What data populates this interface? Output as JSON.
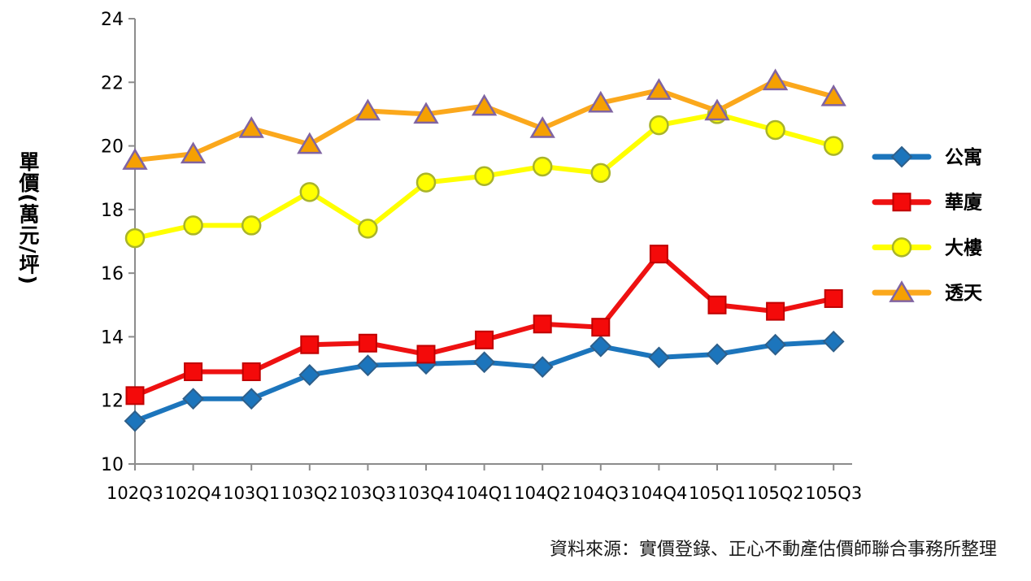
{
  "page": {
    "background": "#ffffff"
  },
  "chart_data": {
    "type": "line",
    "title": "",
    "ylabel": "單價(萬元/坪)",
    "xlabel": "",
    "source_note": "資料來源：實價登錄、正心不動產估價師聯合事務所整理",
    "grid": false,
    "legend_position": "right",
    "ylim": [
      10,
      24
    ],
    "y_ticks": [
      10,
      12,
      14,
      16,
      18,
      20,
      22,
      24
    ],
    "axis_color": "#8C8C8C",
    "text_color": "#000000",
    "categories": [
      "102Q3",
      "102Q4",
      "103Q1",
      "103Q2",
      "103Q3",
      "103Q4",
      "104Q1",
      "104Q2",
      "104Q3",
      "104Q4",
      "105Q1",
      "105Q2",
      "105Q3"
    ],
    "series": [
      {
        "name": "公寓",
        "marker": "diamond",
        "line_color": "#1C75BC",
        "marker_fill": "#1C75BC",
        "marker_stroke": "#2E5F8A",
        "values": [
          11.35,
          12.05,
          12.05,
          12.8,
          13.1,
          13.15,
          13.2,
          13.05,
          13.7,
          13.35,
          13.45,
          13.75,
          13.85
        ]
      },
      {
        "name": "華廈",
        "marker": "square",
        "line_color": "#EE1111",
        "marker_fill": "#F40A0A",
        "marker_stroke": "#C00000",
        "values": [
          12.15,
          12.9,
          12.9,
          13.75,
          13.8,
          13.45,
          13.9,
          14.4,
          14.3,
          16.6,
          15.0,
          14.8,
          15.2
        ]
      },
      {
        "name": "大樓",
        "marker": "circle",
        "line_color": "#FFFF00",
        "marker_fill": "#FFFF00",
        "marker_stroke": "#A9B42A",
        "values": [
          17.1,
          17.5,
          17.5,
          18.55,
          17.4,
          18.85,
          19.05,
          19.35,
          19.15,
          20.65,
          21.0,
          20.5,
          20.0
        ]
      },
      {
        "name": "透天",
        "marker": "triangle",
        "line_color": "#FBA81C",
        "marker_fill": "#F5A002",
        "marker_stroke": "#8064A2",
        "values": [
          19.55,
          19.75,
          20.55,
          20.05,
          21.1,
          21.0,
          21.25,
          20.55,
          21.35,
          21.75,
          21.1,
          22.05,
          21.55
        ]
      }
    ]
  }
}
